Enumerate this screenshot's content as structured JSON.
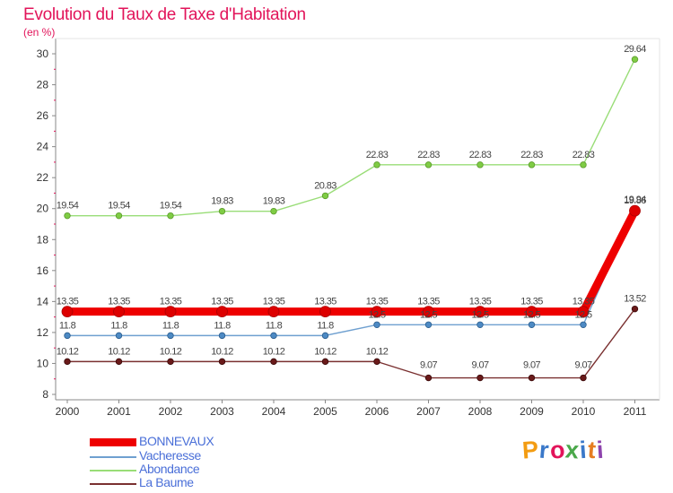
{
  "logo": {
    "text": "Proxiti",
    "colors": [
      "#f39c12",
      "#3a78c9",
      "#e2145a",
      "#4aa84a",
      "#3a78c9",
      "#e67e22",
      "#8e44ad"
    ]
  },
  "chart_data": {
    "type": "line",
    "title": "Evolution du Taux de Taxe d'Habitation",
    "subtitle": "(en %)",
    "x": [
      "2000",
      "2001",
      "2002",
      "2003",
      "2004",
      "2005",
      "2006",
      "2007",
      "2008",
      "2009",
      "2010",
      "2011"
    ],
    "ylim": [
      8,
      30
    ],
    "yticks": [
      8,
      10,
      12,
      14,
      16,
      18,
      20,
      22,
      24,
      26,
      28,
      30
    ],
    "grid": false,
    "legend_position": "bottom-left",
    "series": [
      {
        "name": "BONNEVAUX",
        "color": "#ee0000",
        "values": [
          13.35,
          13.35,
          13.35,
          13.35,
          13.35,
          13.35,
          13.35,
          13.35,
          13.35,
          13.35,
          13.35,
          19.86
        ],
        "labels": [
          "13.35",
          "13.35",
          "13.35",
          "13.35",
          "13.35",
          "13.35",
          "13.35",
          "13.35",
          "13.35",
          "13.35",
          "13.35",
          "19.86"
        ]
      },
      {
        "name": "Vacheresse",
        "color": "#6fa0d0",
        "values": [
          11.8,
          11.8,
          11.8,
          11.8,
          11.8,
          11.8,
          12.5,
          12.5,
          12.5,
          12.5,
          12.5,
          19.94
        ],
        "labels": [
          "11.8",
          "11.8",
          "11.8",
          "11.8",
          "11.8",
          "11.8",
          "12.5",
          "12.5",
          "12.5",
          "12.5",
          "12.5",
          "19.94"
        ]
      },
      {
        "name": "Abondance",
        "color": "#99dd77",
        "values": [
          19.54,
          19.54,
          19.54,
          19.83,
          19.83,
          20.83,
          22.83,
          22.83,
          22.83,
          22.83,
          22.83,
          29.64
        ],
        "labels": [
          "19.54",
          "19.54",
          "19.54",
          "19.83",
          "19.83",
          "20.83",
          "22.83",
          "22.83",
          "22.83",
          "22.83",
          "22.83",
          "29.64"
        ]
      },
      {
        "name": "La Baume",
        "color": "#7a3030",
        "values": [
          10.12,
          10.12,
          10.12,
          10.12,
          10.12,
          10.12,
          10.12,
          9.07,
          9.07,
          9.07,
          9.07,
          13.52
        ],
        "labels": [
          "10.12",
          "10.12",
          "10.12",
          "10.12",
          "10.12",
          "10.12",
          "10.12",
          "9.07",
          "9.07",
          "9.07",
          "9.07",
          "13.52"
        ]
      }
    ]
  }
}
